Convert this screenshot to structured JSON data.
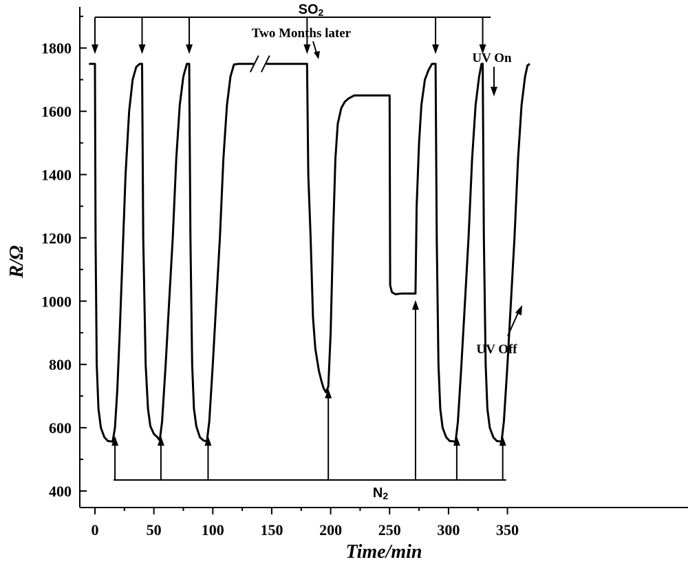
{
  "chart_data": {
    "type": "line",
    "title": "",
    "xlabel": "Time/min",
    "ylabel": "R/Ω",
    "xlim": [
      -5,
      370
    ],
    "ylim": [
      350,
      1900
    ],
    "x_ticks": [
      0,
      50,
      100,
      150,
      200,
      250,
      300,
      350
    ],
    "y_ticks": [
      400,
      600,
      800,
      1000,
      1200,
      1400,
      1600,
      1800
    ],
    "grid": false,
    "series": [
      {
        "name": "",
        "points": [
          [
            -5,
            1750
          ],
          [
            0,
            1750
          ],
          [
            0.5,
            1200
          ],
          [
            1.5,
            800
          ],
          [
            3,
            660
          ],
          [
            5,
            600
          ],
          [
            8,
            570
          ],
          [
            11,
            558
          ],
          [
            15,
            556
          ],
          [
            17,
            600
          ],
          [
            19,
            720
          ],
          [
            21,
            900
          ],
          [
            23,
            1100
          ],
          [
            26,
            1400
          ],
          [
            29,
            1600
          ],
          [
            32,
            1700
          ],
          [
            35,
            1740
          ],
          [
            38,
            1750
          ],
          [
            40,
            1750
          ],
          [
            41,
            1200
          ],
          [
            43,
            800
          ],
          [
            45,
            660
          ],
          [
            47,
            605
          ],
          [
            50,
            580
          ],
          [
            53,
            570
          ],
          [
            55,
            560
          ],
          [
            57,
            620
          ],
          [
            60,
            800
          ],
          [
            63,
            1000
          ],
          [
            66,
            1200
          ],
          [
            69,
            1450
          ],
          [
            72,
            1620
          ],
          [
            75,
            1710
          ],
          [
            78,
            1750
          ],
          [
            80,
            1750
          ],
          [
            81,
            1200
          ],
          [
            82.5,
            800
          ],
          [
            84,
            660
          ],
          [
            86,
            605
          ],
          [
            89,
            570
          ],
          [
            92,
            560
          ],
          [
            95,
            556
          ],
          [
            97,
            620
          ],
          [
            100,
            800
          ],
          [
            103,
            1000
          ],
          [
            106,
            1200
          ],
          [
            109,
            1450
          ],
          [
            112,
            1620
          ],
          [
            115,
            1710
          ],
          [
            118,
            1748
          ],
          [
            122,
            1750
          ],
          [
            180,
            1750
          ],
          [
            181,
            1400
          ],
          [
            183,
            1200
          ],
          [
            185,
            950
          ],
          [
            187,
            850
          ],
          [
            190,
            780
          ],
          [
            192,
            750
          ],
          [
            194,
            725
          ],
          [
            196,
            712
          ],
          [
            198,
            730
          ],
          [
            200,
            900
          ],
          [
            202,
            1200
          ],
          [
            204,
            1450
          ],
          [
            206,
            1560
          ],
          [
            209,
            1610
          ],
          [
            212,
            1630
          ],
          [
            215,
            1640
          ],
          [
            220,
            1650
          ],
          [
            250,
            1650
          ],
          [
            250.5,
            1050
          ],
          [
            252,
            1028
          ],
          [
            255,
            1022
          ],
          [
            260,
            1024
          ],
          [
            265,
            1024
          ],
          [
            272,
            1024
          ],
          [
            273,
            1300
          ],
          [
            275,
            1500
          ],
          [
            277,
            1620
          ],
          [
            280,
            1700
          ],
          [
            283,
            1730
          ],
          [
            286,
            1750
          ],
          [
            289,
            1750
          ],
          [
            290,
            1200
          ],
          [
            291.5,
            800
          ],
          [
            293,
            660
          ],
          [
            295,
            600
          ],
          [
            298,
            570
          ],
          [
            301,
            558
          ],
          [
            306,
            556
          ],
          [
            308,
            620
          ],
          [
            311,
            800
          ],
          [
            314,
            1000
          ],
          [
            317,
            1200
          ],
          [
            320,
            1450
          ],
          [
            323,
            1620
          ],
          [
            326,
            1710
          ],
          [
            328,
            1750
          ],
          [
            329,
            1750
          ],
          [
            330,
            1200
          ],
          [
            331.5,
            800
          ],
          [
            333,
            660
          ],
          [
            335,
            600
          ],
          [
            338,
            570
          ],
          [
            341,
            558
          ],
          [
            345,
            556
          ],
          [
            347,
            620
          ],
          [
            350,
            800
          ],
          [
            353,
            1000
          ],
          [
            356,
            1200
          ],
          [
            359,
            1450
          ],
          [
            362,
            1620
          ],
          [
            365,
            1710
          ],
          [
            367,
            1745
          ],
          [
            369,
            1750
          ]
        ]
      }
    ],
    "breaks": [
      {
        "x": 140,
        "y": 1750
      }
    ],
    "so2_bar": {
      "label_main": "SO",
      "label_sub": "2",
      "y": 1880,
      "x_start": 0,
      "x_end": 330,
      "arrows_down": [
        {
          "x": 0,
          "y_tip": 1770
        },
        {
          "x": 40,
          "y_tip": 1770
        },
        {
          "x": 80,
          "y_tip": 1770
        },
        {
          "x": 180,
          "y_tip": 1770
        },
        {
          "x": 289,
          "y_tip": 1770
        },
        {
          "x": 329,
          "y_tip": 1770
        }
      ]
    },
    "n2_bar": {
      "label_main": "N",
      "label_sub": "2",
      "y": 432,
      "x_start": 17,
      "x_end": 346,
      "arrows_up": [
        {
          "x": 17,
          "y_tip": 580
        },
        {
          "x": 56,
          "y_tip": 580
        },
        {
          "x": 96,
          "y_tip": 580
        },
        {
          "x": 198,
          "y_tip": 730
        },
        {
          "x": 272,
          "y_tip": 1010
        },
        {
          "x": 307,
          "y_tip": 580
        },
        {
          "x": 346,
          "y_tip": 580
        }
      ]
    },
    "annotations": [
      {
        "text": "Two Months later",
        "x": 140,
        "y": 1838,
        "arrow_to": [
          142,
          1770
        ]
      },
      {
        "text": "UV On",
        "x": 250,
        "y": 1790,
        "arrow_to": [
          250,
          1665
        ]
      },
      {
        "text": "UV Off",
        "x": 260,
        "y": 880,
        "arrow_to": [
          267,
          1000
        ]
      }
    ]
  }
}
